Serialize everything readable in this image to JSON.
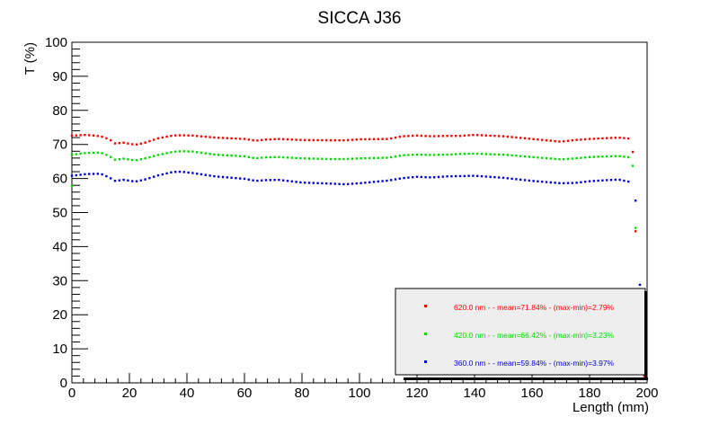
{
  "chart_data": {
    "type": "scatter",
    "title": "SICCA J36",
    "xlabel": "Length (mm)",
    "ylabel": "T (%)",
    "xlim": [
      0,
      200
    ],
    "ylim": [
      0,
      100
    ],
    "x_ticks": [
      "0",
      "20",
      "40",
      "60",
      "80",
      "100",
      "120",
      "140",
      "160",
      "180",
      "200"
    ],
    "y_ticks": [
      "0",
      "10",
      "20",
      "30",
      "40",
      "50",
      "60",
      "70",
      "80",
      "90",
      "100"
    ],
    "grid": false,
    "legend_position": "bottom-right",
    "series": [
      {
        "name": "620.0 nm -  - mean=71.84% - (max-min)=2.79%",
        "color": "#ff0000",
        "profile_x": [
          0,
          5,
          10,
          13,
          15,
          18,
          22,
          25,
          30,
          35,
          38,
          42,
          50,
          60,
          64,
          67,
          72,
          80,
          90,
          95,
          100,
          110,
          115,
          120,
          125,
          130,
          135,
          140,
          150,
          160,
          170,
          175,
          180,
          190,
          194
        ],
        "profile_y": [
          72.6,
          72.8,
          72.4,
          71.5,
          70.3,
          70.5,
          69.9,
          70.4,
          71.8,
          72.6,
          72.7,
          72.6,
          72.0,
          71.6,
          71.1,
          71.4,
          71.6,
          71.3,
          71.2,
          71.2,
          71.5,
          71.6,
          72.4,
          72.6,
          72.4,
          72.5,
          72.5,
          72.8,
          72.4,
          71.6,
          70.8,
          71.3,
          71.6,
          72.0,
          71.7
        ],
        "extra_points": [
          [
            195,
            67.8
          ],
          [
            196,
            44.5
          ],
          [
            199,
            2.0
          ],
          [
            199.5,
            26.3
          ]
        ]
      },
      {
        "name": "420.0 nm -  - mean=66.42% - (max-min)=3.23%",
        "color": "#00dd00",
        "profile_x": [
          0,
          5,
          10,
          13,
          15,
          18,
          22,
          25,
          30,
          35,
          38,
          42,
          50,
          60,
          64,
          67,
          72,
          80,
          90,
          95,
          100,
          110,
          115,
          120,
          125,
          130,
          135,
          140,
          150,
          160,
          170,
          175,
          180,
          190,
          194
        ],
        "profile_y": [
          67.0,
          67.5,
          67.6,
          66.6,
          65.5,
          65.8,
          65.3,
          65.8,
          66.9,
          67.8,
          68.0,
          67.9,
          67.0,
          66.5,
          65.9,
          66.2,
          66.3,
          65.9,
          65.7,
          65.7,
          65.9,
          66.1,
          66.8,
          67.0,
          66.9,
          67.0,
          67.2,
          67.3,
          67.0,
          66.3,
          65.6,
          65.9,
          66.3,
          66.6,
          66.2
        ],
        "extra_points": [
          [
            0,
            57.8
          ],
          [
            195,
            63.7
          ],
          [
            196,
            45.5
          ],
          [
            198,
            12.0
          ]
        ]
      },
      {
        "name": "360.0 nm -  - mean=59.84% - (max-min)=3.97%",
        "color": "#0000dd",
        "profile_x": [
          0,
          5,
          10,
          13,
          15,
          18,
          22,
          25,
          30,
          35,
          38,
          42,
          50,
          60,
          64,
          67,
          72,
          80,
          90,
          95,
          100,
          110,
          115,
          120,
          125,
          130,
          135,
          140,
          150,
          160,
          170,
          175,
          180,
          190,
          194
        ],
        "profile_y": [
          60.8,
          61.3,
          61.4,
          60.3,
          59.3,
          59.6,
          59.1,
          59.6,
          60.9,
          61.9,
          62.0,
          61.6,
          60.6,
          59.9,
          59.3,
          59.5,
          59.6,
          58.8,
          58.5,
          58.3,
          58.6,
          59.4,
          60.1,
          60.5,
          60.3,
          60.6,
          60.7,
          60.8,
          60.2,
          59.3,
          58.6,
          58.7,
          59.2,
          59.7,
          59.0
        ],
        "extra_points": [
          [
            196,
            53.5
          ],
          [
            197.5,
            28.8
          ],
          [
            199,
            4.0
          ]
        ]
      }
    ]
  }
}
